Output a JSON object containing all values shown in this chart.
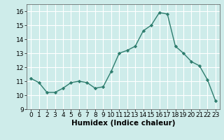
{
  "x": [
    0,
    1,
    2,
    3,
    4,
    5,
    6,
    7,
    8,
    9,
    10,
    11,
    12,
    13,
    14,
    15,
    16,
    17,
    18,
    19,
    20,
    21,
    22,
    23
  ],
  "y": [
    11.2,
    10.9,
    10.2,
    10.2,
    10.5,
    10.9,
    11.0,
    10.9,
    10.5,
    10.6,
    11.7,
    13.0,
    13.2,
    13.5,
    14.6,
    15.0,
    15.9,
    15.8,
    13.5,
    13.0,
    12.4,
    12.1,
    11.1,
    9.6
  ],
  "line_color": "#2e7d6e",
  "marker": "D",
  "marker_size": 2.2,
  "line_width": 1.0,
  "background_color": "#ceecea",
  "grid_color": "#ffffff",
  "xlabel": "Humidex (Indice chaleur)",
  "xlabel_fontsize": 7.5,
  "xlim": [
    -0.5,
    23.5
  ],
  "ylim": [
    9,
    16.5
  ],
  "yticks": [
    9,
    10,
    11,
    12,
    13,
    14,
    15,
    16
  ],
  "xticks": [
    0,
    1,
    2,
    3,
    4,
    5,
    6,
    7,
    8,
    9,
    10,
    11,
    12,
    13,
    14,
    15,
    16,
    17,
    18,
    19,
    20,
    21,
    22,
    23
  ],
  "tick_fontsize": 6.5
}
